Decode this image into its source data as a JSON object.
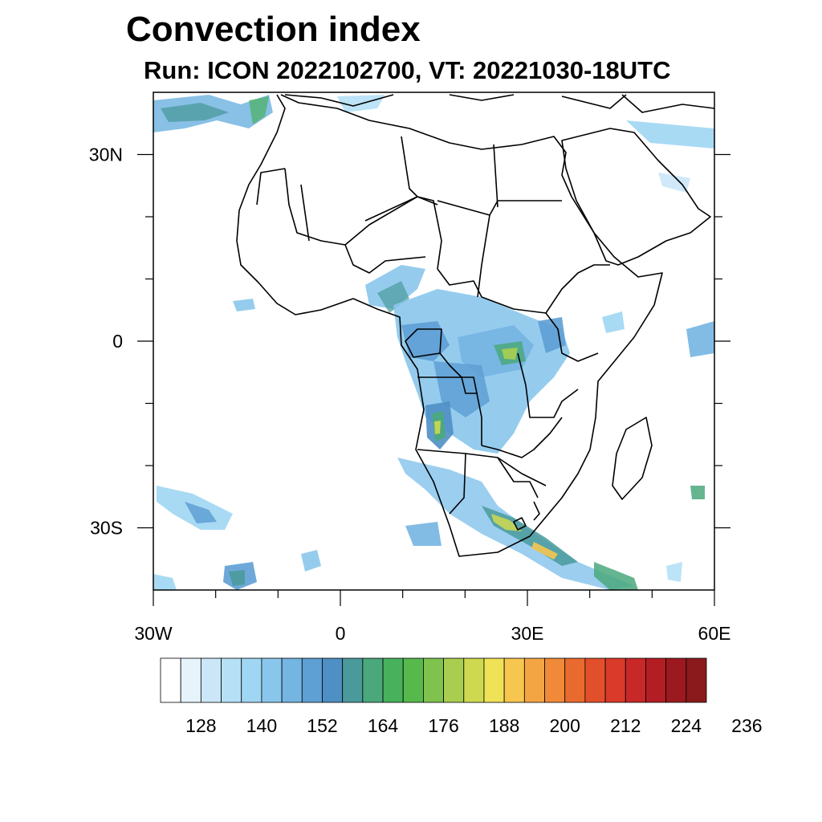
{
  "title": "Convection index",
  "subtitle": "Run: ICON 2022102700,  VT: 20221030-18UTC",
  "map": {
    "lon_range": [
      -30,
      60
    ],
    "lat_range": [
      -40,
      40
    ],
    "lon_labels": [
      {
        "lon": -30,
        "text": "30W"
      },
      {
        "lon": 0,
        "text": "0"
      },
      {
        "lon": 30,
        "text": "30E"
      },
      {
        "lon": 60,
        "text": "60E"
      }
    ],
    "lat_labels": [
      {
        "lat": 30,
        "text": "30N"
      },
      {
        "lat": 0,
        "text": "0"
      },
      {
        "lat": -30,
        "text": "30S"
      }
    ]
  },
  "colorbar": {
    "colors": [
      "#ffffff",
      "#e6f3fb",
      "#cbe7f7",
      "#b5e0f6",
      "#9fd6f3",
      "#8ac6ec",
      "#74b5e2",
      "#5e9fd4",
      "#4e8fc4",
      "#4a9a9c",
      "#4aa87c",
      "#47b15c",
      "#57b94c",
      "#7fc24e",
      "#a9ce4f",
      "#cfd94f",
      "#efe257",
      "#f6c64f",
      "#f4a543",
      "#f08a38",
      "#e96a2f",
      "#e2502b",
      "#da3a29",
      "#c82828",
      "#b21e24",
      "#9c1a1f",
      "#8a1a1c"
    ],
    "tick_labels": [
      "128",
      "140",
      "152",
      "164",
      "176",
      "188",
      "200",
      "212",
      "224",
      "236"
    ]
  }
}
